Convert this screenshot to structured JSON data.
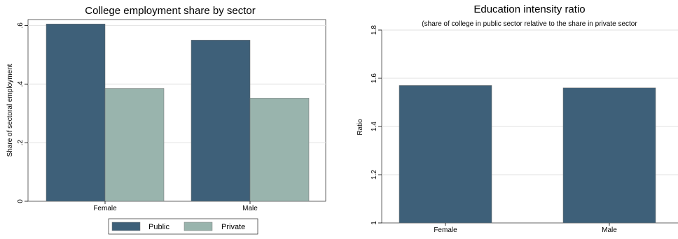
{
  "chart_data": [
    {
      "type": "bar",
      "title": "College employment share by sector",
      "subtitle": "",
      "xlabel": "",
      "ylabel": "Share of sectoral employment",
      "categories": [
        "Female",
        "Male"
      ],
      "series": [
        {
          "name": "Public",
          "values": [
            0.605,
            0.55
          ],
          "color": "#3e6079"
        },
        {
          "name": "Private",
          "values": [
            0.385,
            0.352
          ],
          "color": "#99b4ad"
        }
      ],
      "ylim": [
        0,
        0.62
      ],
      "yticks": [
        0,
        0.2,
        0.4,
        0.6
      ],
      "ytick_labels": [
        "0",
        ".2",
        ".4",
        ".6"
      ],
      "grid": true,
      "legend": {
        "position": "bottom",
        "entries": [
          "Public",
          "Private"
        ]
      }
    },
    {
      "type": "bar",
      "title": "Education intensity ratio",
      "subtitle": "(share of college in public sector relative to the share in private sector",
      "xlabel": "",
      "ylabel": "Ratio",
      "categories": [
        "Female",
        "Male"
      ],
      "series": [
        {
          "name": "",
          "values": [
            1.57,
            1.56
          ],
          "color": "#3e6079"
        }
      ],
      "ylim": [
        1,
        1.8
      ],
      "yticks": [
        1,
        1.2,
        1.4,
        1.6,
        1.8
      ],
      "ytick_labels": [
        "1",
        "1.2",
        "1.4",
        "1.6",
        "1.8"
      ],
      "grid": true,
      "legend": null
    }
  ]
}
